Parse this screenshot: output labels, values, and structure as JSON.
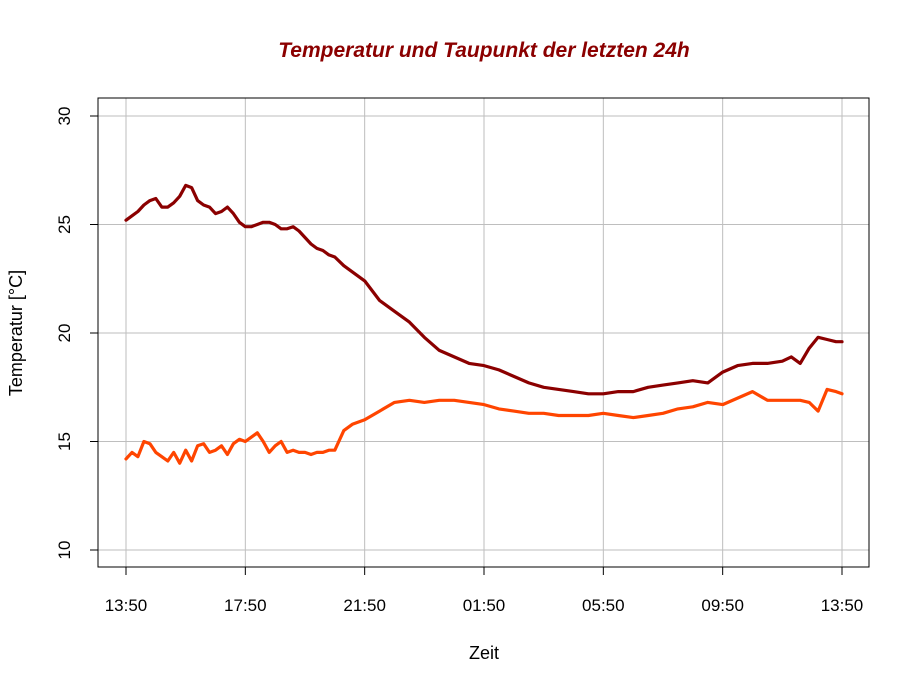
{
  "chart_data": {
    "type": "line",
    "title": "Temperatur und Taupunkt der letzten 24h",
    "xlabel": "Zeit",
    "ylabel": "Temperatur [°C]",
    "x_ticks": [
      "13:50",
      "17:50",
      "21:50",
      "01:50",
      "05:50",
      "09:50",
      "13:50"
    ],
    "x_range_hours": [
      0,
      24
    ],
    "y_ticks": [
      10,
      15,
      20,
      25,
      30
    ],
    "ylim": [
      10,
      30
    ],
    "grid": true,
    "colors": {
      "title": "#8b0000",
      "grid": "#bebebe",
      "axis": "#000000"
    },
    "series": [
      {
        "color": "#8b0000",
        "x": [
          0,
          0.2,
          0.4,
          0.6,
          0.8,
          1.0,
          1.2,
          1.4,
          1.6,
          1.8,
          2.0,
          2.2,
          2.4,
          2.6,
          2.8,
          3.0,
          3.2,
          3.4,
          3.6,
          3.8,
          4.0,
          4.2,
          4.4,
          4.6,
          4.8,
          5.0,
          5.2,
          5.4,
          5.6,
          5.8,
          6.0,
          6.2,
          6.4,
          6.6,
          6.8,
          7.0,
          7.3,
          7.6,
          8.0,
          8.5,
          9.0,
          9.5,
          10.0,
          10.5,
          11.0,
          11.5,
          12.0,
          12.5,
          13.0,
          13.5,
          14.0,
          14.5,
          15.0,
          15.5,
          16.0,
          16.5,
          17.0,
          17.5,
          18.0,
          18.5,
          19.0,
          19.5,
          20.0,
          20.5,
          21.0,
          21.5,
          22.0,
          22.3,
          22.6,
          22.9,
          23.2,
          23.5,
          23.8,
          24.0
        ],
        "values": [
          25.2,
          25.4,
          25.6,
          25.9,
          26.1,
          26.2,
          25.8,
          25.8,
          26.0,
          26.3,
          26.8,
          26.7,
          26.1,
          25.9,
          25.8,
          25.5,
          25.6,
          25.8,
          25.5,
          25.1,
          24.9,
          24.9,
          25.0,
          25.1,
          25.1,
          25.0,
          24.8,
          24.8,
          24.9,
          24.7,
          24.4,
          24.1,
          23.9,
          23.8,
          23.6,
          23.5,
          23.1,
          22.8,
          22.4,
          21.5,
          21.0,
          20.5,
          19.8,
          19.2,
          18.9,
          18.6,
          18.5,
          18.3,
          18.0,
          17.7,
          17.5,
          17.4,
          17.3,
          17.2,
          17.2,
          17.3,
          17.3,
          17.5,
          17.6,
          17.7,
          17.8,
          17.7,
          18.2,
          18.5,
          18.6,
          18.6,
          18.7,
          18.9,
          18.6,
          19.3,
          19.8,
          19.7,
          19.6,
          19.6
        ]
      },
      {
        "color": "#ff4500",
        "x": [
          0,
          0.2,
          0.4,
          0.6,
          0.8,
          1.0,
          1.2,
          1.4,
          1.6,
          1.8,
          2.0,
          2.2,
          2.4,
          2.6,
          2.8,
          3.0,
          3.2,
          3.4,
          3.6,
          3.8,
          4.0,
          4.2,
          4.4,
          4.6,
          4.8,
          5.0,
          5.2,
          5.4,
          5.6,
          5.8,
          6.0,
          6.2,
          6.4,
          6.6,
          6.8,
          7.0,
          7.3,
          7.6,
          8.0,
          8.5,
          9.0,
          9.5,
          10.0,
          10.5,
          11.0,
          11.5,
          12.0,
          12.5,
          13.0,
          13.5,
          14.0,
          14.5,
          15.0,
          15.5,
          16.0,
          16.5,
          17.0,
          17.5,
          18.0,
          18.5,
          19.0,
          19.5,
          20.0,
          20.5,
          21.0,
          21.5,
          22.0,
          22.3,
          22.6,
          22.9,
          23.2,
          23.5,
          23.8,
          24.0
        ],
        "values": [
          14.2,
          14.5,
          14.3,
          15.0,
          14.9,
          14.5,
          14.3,
          14.1,
          14.5,
          14.0,
          14.6,
          14.1,
          14.8,
          14.9,
          14.5,
          14.6,
          14.8,
          14.4,
          14.9,
          15.1,
          15.0,
          15.2,
          15.4,
          15.0,
          14.5,
          14.8,
          15.0,
          14.5,
          14.6,
          14.5,
          14.5,
          14.4,
          14.5,
          14.5,
          14.6,
          14.6,
          15.5,
          15.8,
          16.0,
          16.4,
          16.8,
          16.9,
          16.8,
          16.9,
          16.9,
          16.8,
          16.7,
          16.5,
          16.4,
          16.3,
          16.3,
          16.2,
          16.2,
          16.2,
          16.3,
          16.2,
          16.1,
          16.2,
          16.3,
          16.5,
          16.6,
          16.8,
          16.7,
          17.0,
          17.3,
          16.9,
          16.9,
          16.9,
          16.9,
          16.8,
          16.4,
          17.4,
          17.3,
          17.2
        ]
      }
    ]
  }
}
